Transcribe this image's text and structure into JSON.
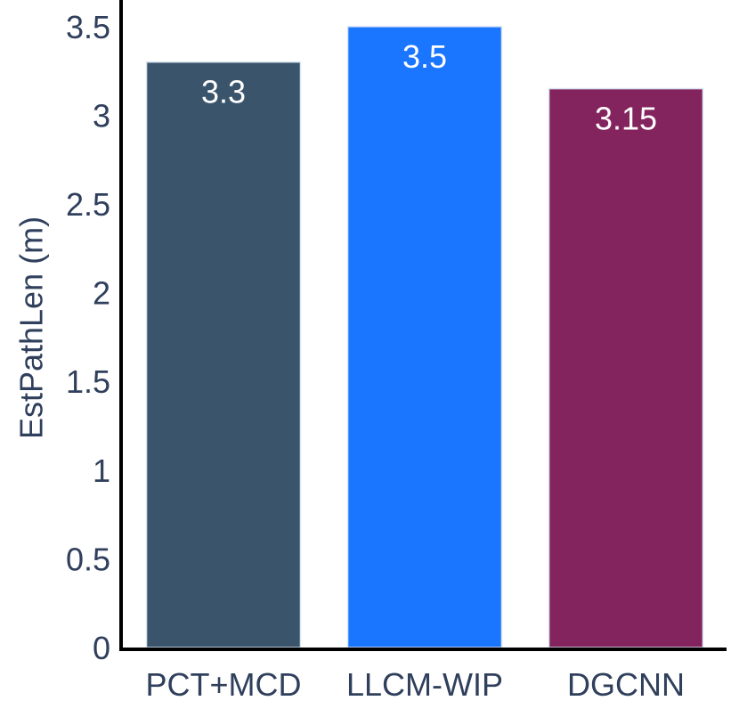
{
  "chart_data": {
    "type": "bar",
    "title": "",
    "xlabel": "",
    "ylabel": "EstPathLen (m)",
    "categories": [
      "PCT+MCD",
      "LLCM-WIP",
      "DGCNN"
    ],
    "values": [
      3.3,
      3.5,
      3.15
    ],
    "data_labels": [
      "3.3",
      "3.5",
      "3.15"
    ],
    "colors": [
      "#3a546c",
      "#1a75ff",
      "#84245e"
    ],
    "ylim": [
      0,
      3.65
    ],
    "yticks": [
      0,
      0.5,
      1,
      1.5,
      2,
      2.5,
      3,
      3.5
    ],
    "ytick_labels": [
      "0",
      "0.5",
      "1",
      "1.5",
      "2",
      "2.5",
      "3",
      "3.5"
    ],
    "grid": false,
    "legend": "none"
  }
}
